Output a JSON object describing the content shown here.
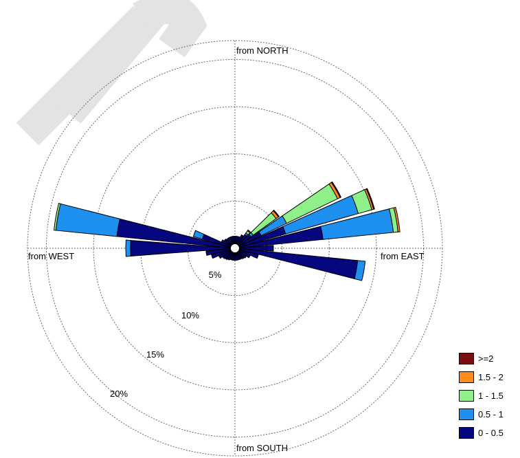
{
  "chart_data": {
    "type": "wind-rose",
    "direction_labels": {
      "north": "from NORTH",
      "east": "from EAST",
      "south": "from SOUTH",
      "west": "from WEST"
    },
    "radial_unit": "%",
    "radial_rings": [
      5,
      10,
      15,
      20
    ],
    "radial_ring_labels": [
      "5%",
      "10%",
      "15%",
      "20%"
    ],
    "rmax": 22,
    "grid": true,
    "legend_position": "bottom-right",
    "bins": [
      {
        "label": ">=2",
        "color": "#7a0f0f"
      },
      {
        "label": "1.5 - 2",
        "color": "#ff8c1a"
      },
      {
        "label": "1 - 1.5",
        "color": "#8ff08a"
      },
      {
        "label": "0.5 - 1",
        "color": "#1e90f0"
      },
      {
        "label": "0 - 0.5",
        "color": "#06067e"
      }
    ],
    "sectors": [
      {
        "from_deg": 0,
        "values": [
          0.7,
          0,
          0,
          0,
          0
        ]
      },
      {
        "from_deg": 10,
        "values": [
          0.7,
          0,
          0,
          0,
          0
        ]
      },
      {
        "from_deg": 20,
        "values": [
          0.7,
          0,
          0,
          0,
          0
        ]
      },
      {
        "from_deg": 30,
        "values": [
          1.0,
          0,
          0,
          0,
          0
        ]
      },
      {
        "from_deg": 40,
        "values": [
          1.2,
          0.2,
          0.3,
          0.1,
          0
        ]
      },
      {
        "from_deg": 50,
        "values": [
          1.5,
          0.3,
          3.0,
          0.3,
          0.1
        ]
      },
      {
        "from_deg": 60,
        "values": [
          2.5,
          3.0,
          6.0,
          0.3,
          0.1
        ]
      },
      {
        "from_deg": 70,
        "values": [
          5.0,
          8.0,
          1.5,
          0.2,
          0.1
        ]
      },
      {
        "from_deg": 80,
        "values": [
          8.8,
          7.5,
          0.5,
          0.2,
          0
        ]
      },
      {
        "from_deg": 90,
        "values": [
          3.5,
          0,
          0,
          0,
          0
        ]
      },
      {
        "from_deg": 100,
        "values": [
          12.5,
          0.8,
          0,
          0,
          0
        ]
      },
      {
        "from_deg": 110,
        "values": [
          2.0,
          0,
          0,
          0,
          0
        ]
      },
      {
        "from_deg": 120,
        "values": [
          1.2,
          0,
          0,
          0,
          0
        ]
      },
      {
        "from_deg": 130,
        "values": [
          0.9,
          0,
          0,
          0,
          0
        ]
      },
      {
        "from_deg": 140,
        "values": [
          0.8,
          0,
          0,
          0,
          0
        ]
      },
      {
        "from_deg": 150,
        "values": [
          0.7,
          0,
          0,
          0,
          0
        ]
      },
      {
        "from_deg": 160,
        "values": [
          0.7,
          0,
          0,
          0,
          0
        ]
      },
      {
        "from_deg": 170,
        "values": [
          0.7,
          0,
          0,
          0,
          0
        ]
      },
      {
        "from_deg": 180,
        "values": [
          0.7,
          0,
          0,
          0,
          0
        ]
      },
      {
        "from_deg": 190,
        "values": [
          0.7,
          0,
          0,
          0,
          0
        ]
      },
      {
        "from_deg": 200,
        "values": [
          0.7,
          0,
          0,
          0,
          0
        ]
      },
      {
        "from_deg": 210,
        "values": [
          0.8,
          0,
          0,
          0,
          0
        ]
      },
      {
        "from_deg": 220,
        "values": [
          0.9,
          0,
          0,
          0,
          0
        ]
      },
      {
        "from_deg": 230,
        "values": [
          1.0,
          0,
          0,
          0,
          0
        ]
      },
      {
        "from_deg": 240,
        "values": [
          1.3,
          0,
          0,
          0,
          0
        ]
      },
      {
        "from_deg": 250,
        "values": [
          2.0,
          0,
          0,
          0,
          0
        ]
      },
      {
        "from_deg": 260,
        "values": [
          2.5,
          0,
          0,
          0,
          0
        ]
      },
      {
        "from_deg": 270,
        "values": [
          10.5,
          0.5,
          0,
          0,
          0
        ]
      },
      {
        "from_deg": 280,
        "values": [
          12.0,
          6.5,
          0.2,
          0,
          0
        ]
      },
      {
        "from_deg": 290,
        "values": [
          3.0,
          1.0,
          0,
          0,
          0
        ]
      },
      {
        "from_deg": 300,
        "values": [
          1.0,
          0,
          0,
          0,
          0
        ]
      },
      {
        "from_deg": 310,
        "values": [
          0.8,
          0,
          0,
          0,
          0
        ]
      },
      {
        "from_deg": 320,
        "values": [
          0.7,
          0,
          0,
          0,
          0
        ]
      },
      {
        "from_deg": 330,
        "values": [
          0.7,
          0,
          0,
          0,
          0
        ]
      },
      {
        "from_deg": 340,
        "values": [
          0.7,
          0,
          0,
          0,
          0
        ]
      },
      {
        "from_deg": 350,
        "values": [
          0.7,
          0,
          0,
          0,
          0
        ]
      }
    ]
  }
}
